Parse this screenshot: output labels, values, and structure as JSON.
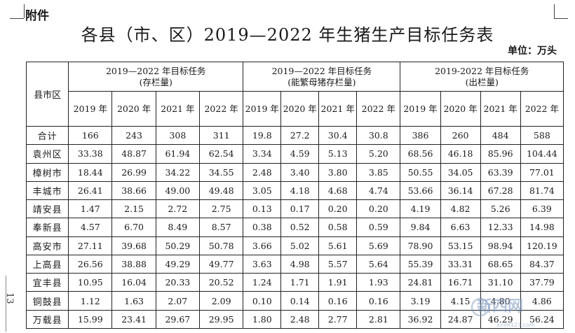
{
  "attachment_label": "附件",
  "title": "各县（市、区）2019—2022 年生猪生产目标任务表",
  "unit": "单位：万头",
  "page_number": "13",
  "table": {
    "corner_header": "县市区",
    "groups": [
      {
        "line1": "2019—2022 年目标任务",
        "line2": "(存栏量)"
      },
      {
        "line1": "2019—2022 年目标任务",
        "line2": "(能繁母猪存栏量)"
      },
      {
        "line1": "2019-2022 年目标任务",
        "line2": "(出栏量)"
      }
    ],
    "years": [
      [
        "2019 年",
        "2020 年",
        "2021 年",
        "2022 年"
      ],
      [
        "2019 年",
        "2020 年",
        "2021 年",
        "2022 年"
      ],
      [
        "2019 年",
        "2020 年",
        "2021 年",
        "2022 年"
      ]
    ],
    "rows": [
      {
        "name": "合计",
        "values": [
          "166",
          "243",
          "308",
          "311",
          "19.8",
          "27.2",
          "30.4",
          "30.8",
          "386",
          "260",
          "484",
          "588"
        ]
      },
      {
        "name": "袁州区",
        "values": [
          "33.38",
          "48.87",
          "61.94",
          "62.54",
          "3.34",
          "4.59",
          "5.13",
          "5.20",
          "68.56",
          "46.18",
          "85.96",
          "104.44"
        ]
      },
      {
        "name": "樟树市",
        "values": [
          "18.44",
          "26.99",
          "34.22",
          "34.55",
          "2.48",
          "3.40",
          "3.80",
          "3.85",
          "50.55",
          "34.05",
          "63.39",
          "77.01"
        ]
      },
      {
        "name": "丰城市",
        "values": [
          "26.41",
          "38.66",
          "49.00",
          "49.48",
          "3.05",
          "4.18",
          "4.68",
          "4.74",
          "53.66",
          "36.14",
          "67.28",
          "81.74"
        ]
      },
      {
        "name": "靖安县",
        "values": [
          "1.47",
          "2.15",
          "2.72",
          "2.75",
          "0.13",
          "0.17",
          "0.20",
          "0.20",
          "4.19",
          "4.82",
          "5.26",
          "6.39"
        ]
      },
      {
        "name": "奉新县",
        "values": [
          "4.57",
          "6.70",
          "8.49",
          "8.57",
          "0.38",
          "0.52",
          "0.58",
          "0.59",
          "9.84",
          "6.63",
          "12.33",
          "14.98"
        ]
      },
      {
        "name": "高安市",
        "values": [
          "27.11",
          "39.68",
          "50.29",
          "50.78",
          "3.66",
          "5.02",
          "5.61",
          "5.69",
          "78.90",
          "53.15",
          "98.94",
          "120.19"
        ]
      },
      {
        "name": "上高县",
        "values": [
          "26.56",
          "38.88",
          "49.29",
          "49.77",
          "3.63",
          "4.98",
          "5.57",
          "5.64",
          "55.39",
          "33.31",
          "68.65",
          "84.37"
        ]
      },
      {
        "name": "宜丰县",
        "values": [
          "10.95",
          "16.04",
          "20.33",
          "20.52",
          "1.24",
          "1.71",
          "1.91",
          "1.93",
          "24.81",
          "16.71",
          "31.10",
          "37.79"
        ]
      },
      {
        "name": "铜鼓县",
        "values": [
          "1.12",
          "1.63",
          "2.07",
          "2.09",
          "0.10",
          "0.14",
          "0.16",
          "0.16",
          "3.19",
          "4.15",
          "4.80",
          "4.86"
        ]
      },
      {
        "name": "万载县",
        "values": [
          "15.99",
          "23.41",
          "29.67",
          "29.95",
          "1.80",
          "2.48",
          "2.77",
          "2.81",
          "36.92",
          "24.87",
          "46.29",
          "56.24"
        ]
      }
    ]
  },
  "watermark": {
    "text": "新四网",
    "url": "xinm123.com"
  }
}
